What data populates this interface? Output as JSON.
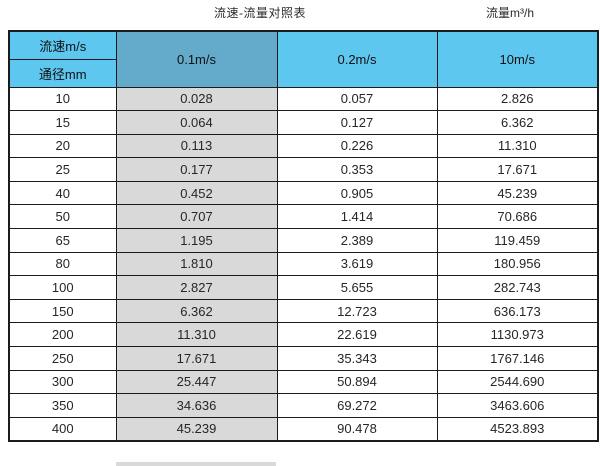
{
  "header": {
    "title": "流速-流量对照表",
    "unit_label": "流量m³/h"
  },
  "table": {
    "corner_top": "流速m/s",
    "corner_bottom": "通径mm",
    "velocity_headers": [
      "0.1m/s",
      "0.2m/s",
      "10m/s"
    ],
    "rows": [
      [
        "10",
        "0.028",
        "0.057",
        "2.826"
      ],
      [
        "15",
        "0.064",
        "0.127",
        "6.362"
      ],
      [
        "20",
        "0.113",
        "0.226",
        "11.310"
      ],
      [
        "25",
        "0.177",
        "0.353",
        "17.671"
      ],
      [
        "40",
        "0.452",
        "0.905",
        "45.239"
      ],
      [
        "50",
        "0.707",
        "1.414",
        "70.686"
      ],
      [
        "65",
        "1.195",
        "2.389",
        "119.459"
      ],
      [
        "80",
        "1.810",
        "3.619",
        "180.956"
      ],
      [
        "100",
        "2.827",
        "5.655",
        "282.743"
      ],
      [
        "150",
        "6.362",
        "12.723",
        "636.173"
      ],
      [
        "200",
        "11.310",
        "22.619",
        "1130.973"
      ],
      [
        "250",
        "17.671",
        "35.343",
        "1767.146"
      ],
      [
        "300",
        "25.447",
        "50.894",
        "2544.690"
      ],
      [
        "350",
        "34.636",
        "69.272",
        "3463.606"
      ],
      [
        "400",
        "45.239",
        "90.478",
        "4523.893"
      ]
    ]
  },
  "colors": {
    "header_light_blue": "#5ec7f0",
    "header_dark_blue": "#64abcb",
    "highlight_grey": "#d9d9d9",
    "border": "#1c1c1c"
  },
  "chart_data": {
    "type": "table",
    "title": "流速-流量对照表",
    "unit": "流量m³/h",
    "columns": [
      "通径mm",
      "0.1m/s",
      "0.2m/s",
      "10m/s"
    ],
    "rows": [
      [
        10,
        0.028,
        0.057,
        2.826
      ],
      [
        15,
        0.064,
        0.127,
        6.362
      ],
      [
        20,
        0.113,
        0.226,
        11.31
      ],
      [
        25,
        0.177,
        0.353,
        17.671
      ],
      [
        40,
        0.452,
        0.905,
        45.239
      ],
      [
        50,
        0.707,
        1.414,
        70.686
      ],
      [
        65,
        1.195,
        2.389,
        119.459
      ],
      [
        80,
        1.81,
        3.619,
        180.956
      ],
      [
        100,
        2.827,
        5.655,
        282.743
      ],
      [
        150,
        6.362,
        12.723,
        636.173
      ],
      [
        200,
        11.31,
        22.619,
        1130.973
      ],
      [
        250,
        17.671,
        35.343,
        1767.146
      ],
      [
        300,
        25.447,
        50.894,
        2544.69
      ],
      [
        350,
        34.636,
        69.272,
        3463.606
      ],
      [
        400,
        45.239,
        90.478,
        4523.893
      ]
    ]
  }
}
